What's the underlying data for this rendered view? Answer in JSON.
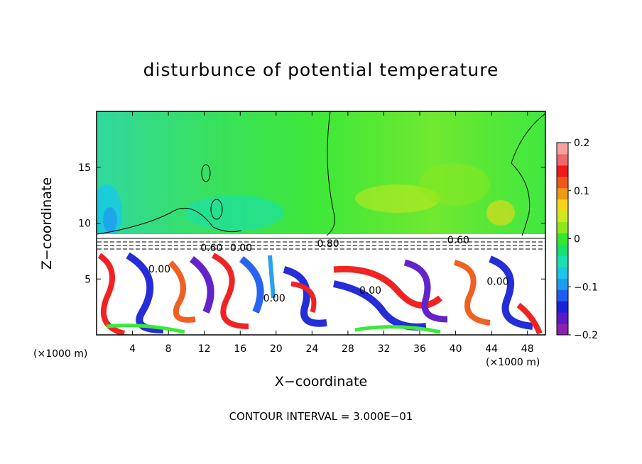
{
  "chart_data": {
    "type": "heatmap",
    "title": "disturbunce of potential temperature",
    "xlabel": "X−coordinate",
    "ylabel": "Z−coordinate",
    "x_unit": "(×1000 m)",
    "xlim": [
      0,
      50
    ],
    "ylim": [
      0,
      20
    ],
    "x_ticks": [
      4,
      8,
      12,
      16,
      20,
      24,
      28,
      32,
      36,
      40,
      44,
      48
    ],
    "y_ticks": [
      5,
      10,
      15
    ],
    "colorbar": {
      "range": [
        -0.2,
        0.2
      ],
      "tick_values": [
        0.2,
        0.1,
        0,
        -0.1,
        -0.2
      ],
      "tick_labels": [
        "0.2",
        "0.1",
        "0",
        "−0.1",
        "−0.2"
      ],
      "colors": [
        "#8b1fb0",
        "#5a18c8",
        "#1a22d8",
        "#1e5cf0",
        "#1e9cf0",
        "#18c8e8",
        "#18e0b0",
        "#18e070",
        "#30e830",
        "#8ce81c",
        "#d0e81c",
        "#f0d818",
        "#f09818",
        "#f05818",
        "#f01818",
        "#f06868",
        "#f8a0a0"
      ]
    },
    "contour_labels": [
      {
        "text": "0.60",
        "x": 40.3,
        "z": 8.5
      },
      {
        "text": "0.80",
        "x": 25.8,
        "z": 8.2
      },
      {
        "text": "0.60",
        "x": 12.8,
        "z": 7.8
      },
      {
        "text": "0.00",
        "x": 16.1,
        "z": 7.8
      },
      {
        "text": "0.00",
        "x": 7.0,
        "z": 5.9
      },
      {
        "text": "0.00",
        "x": 30.5,
        "z": 4.0
      },
      {
        "text": "0.00",
        "x": 44.7,
        "z": 4.8
      },
      {
        "text": "0.00",
        "x": 19.8,
        "z": 3.3
      }
    ],
    "contour_interval_note": "CONTOUR INTERVAL = 3.000E−01"
  }
}
